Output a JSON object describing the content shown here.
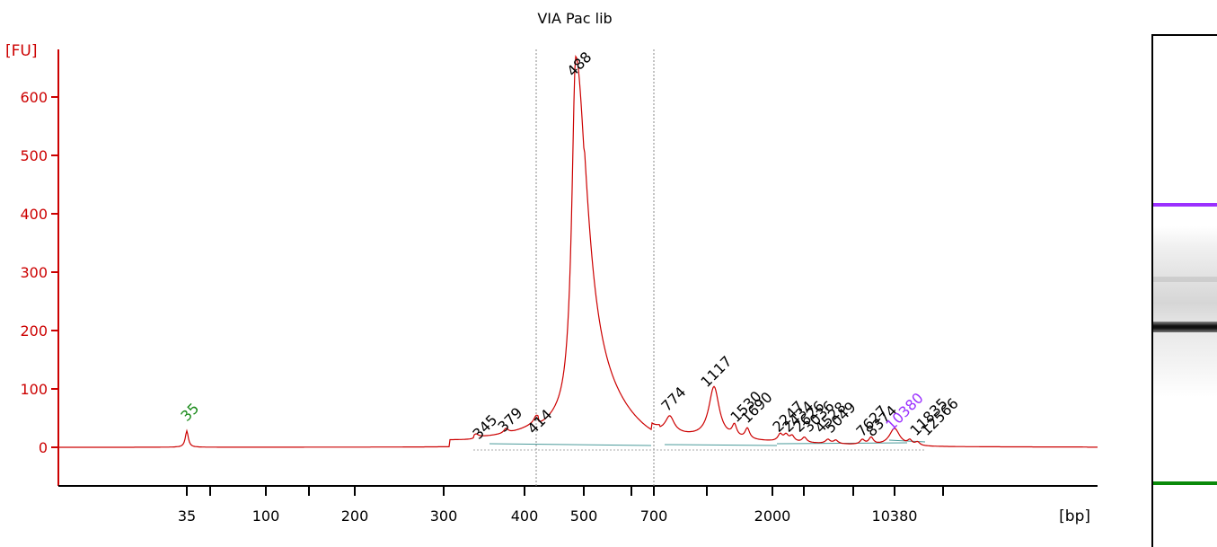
{
  "chart_data": {
    "type": "line",
    "title": "VIA Pac lib",
    "ylabel": "[FU]",
    "xlabel": "[bp]",
    "ylim": [
      -60,
      680
    ],
    "yticks": [
      0,
      100,
      200,
      300,
      400,
      500,
      600
    ],
    "xaxis_labels": [
      "35",
      "100",
      "200",
      "300",
      "400",
      "500",
      "700",
      "2000",
      "10380"
    ],
    "trace_color": "#cc0000",
    "axis_color": "#cc0000",
    "x_markers_bp": [
      414,
      700
    ],
    "peaks": [
      {
        "label": "35",
        "x_bp": 35,
        "fu": 28,
        "color": "#1a8a1a"
      },
      {
        "label": "345",
        "x_bp": 345,
        "fu": 5,
        "color": "#000000"
      },
      {
        "label": "379",
        "x_bp": 379,
        "fu": 8,
        "color": "#000000"
      },
      {
        "label": "414",
        "x_bp": 414,
        "fu": 10,
        "color": "#000000"
      },
      {
        "label": "488",
        "x_bp": 488,
        "fu": 618,
        "color": "#000000"
      },
      {
        "label": "774",
        "x_bp": 774,
        "fu": 28,
        "color": "#000000"
      },
      {
        "label": "1117",
        "x_bp": 1117,
        "fu": 88,
        "color": "#000000"
      },
      {
        "label": "1530",
        "x_bp": 1530,
        "fu": 20,
        "color": "#000000"
      },
      {
        "label": "1690",
        "x_bp": 1690,
        "fu": 18,
        "color": "#000000"
      },
      {
        "label": "2247",
        "x_bp": 2247,
        "fu": 12,
        "color": "#000000"
      },
      {
        "label": "2434",
        "x_bp": 2434,
        "fu": 11,
        "color": "#000000"
      },
      {
        "label": "2626",
        "x_bp": 2626,
        "fu": 10,
        "color": "#000000"
      },
      {
        "label": "3036",
        "x_bp": 3036,
        "fu": 9,
        "color": "#000000"
      },
      {
        "label": "4528",
        "x_bp": 4528,
        "fu": 7,
        "color": "#000000"
      },
      {
        "label": "5049",
        "x_bp": 5049,
        "fu": 6,
        "color": "#000000"
      },
      {
        "label": "7627",
        "x_bp": 7627,
        "fu": 8,
        "color": "#000000"
      },
      {
        "label": "8374",
        "x_bp": 8374,
        "fu": 12,
        "color": "#000000"
      },
      {
        "label": "10380",
        "x_bp": 10380,
        "fu": 30,
        "color": "#9b30ff"
      },
      {
        "label": "11835",
        "x_bp": 11835,
        "fu": 8,
        "color": "#000000"
      },
      {
        "label": "12566",
        "x_bp": 12566,
        "fu": 6,
        "color": "#000000"
      }
    ],
    "grid": false,
    "legend": "none"
  },
  "gel": {
    "upper_marker_color": "#9b30ff",
    "lower_marker_color": "#0a8a0a",
    "main_band_color": "#111111"
  }
}
